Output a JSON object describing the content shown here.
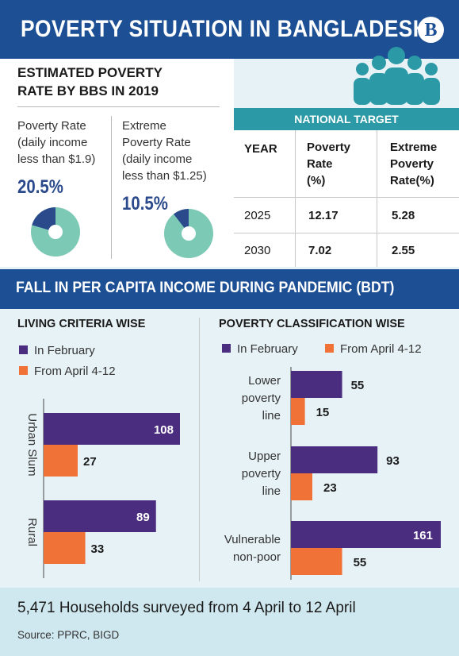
{
  "header": {
    "title": "POVERTY SITUATION IN BANGLADESH",
    "logo_letter": "B"
  },
  "estimate": {
    "heading_line1": "ESTIMATED POVERTY",
    "heading_line2": "RATE BY BBS IN 2019",
    "poverty": {
      "label_lines": [
        "Poverty Rate",
        "(daily income",
        "less than $1.9)"
      ],
      "value": "20.5%",
      "fraction": 0.205
    },
    "extreme": {
      "label_lines": [
        "Extreme",
        "Poverty Rate",
        "(daily income",
        "less than $1.25)"
      ],
      "value": "10.5%",
      "fraction": 0.105
    }
  },
  "colors": {
    "navy": "#1c4f93",
    "teal": "#2b99a6",
    "donut_light": "#7cc9b5",
    "donut_dark": "#2a4a8c",
    "bar_purple": "#4b2d7f",
    "bar_orange": "#f07236"
  },
  "national_target": {
    "title": "NATIONAL TARGET",
    "headers": {
      "year": "YEAR",
      "poverty": [
        "Poverty",
        "Rate",
        "(%)"
      ],
      "extreme": [
        "Extreme",
        "Poverty",
        "Rate(%)"
      ]
    },
    "rows": [
      {
        "year": "2025",
        "poverty": "12.17",
        "extreme": "5.28"
      },
      {
        "year": "2030",
        "poverty": "7.02",
        "extreme": "2.55"
      }
    ]
  },
  "band": {
    "title": "FALL IN PER CAPITA INCOME DURING PANDEMIC (BDT)"
  },
  "chart_data": [
    {
      "type": "bar",
      "orientation": "horizontal",
      "title": "LIVING CRITERIA WISE",
      "categories": [
        "Urban Slum",
        "Rural"
      ],
      "series": [
        {
          "name": "In February",
          "values": [
            108,
            89
          ]
        },
        {
          "name": "From April 4-12",
          "values": [
            27,
            33
          ]
        }
      ]
    },
    {
      "type": "bar",
      "orientation": "horizontal",
      "title": "POVERTY CLASSIFICATION WISE",
      "categories": [
        [
          "Lower",
          "poverty",
          "line"
        ],
        [
          "Upper",
          "poverty",
          "line"
        ],
        [
          "Vulnerable",
          "non-poor"
        ]
      ],
      "series": [
        {
          "name": "In February",
          "values": [
            55,
            93,
            161
          ]
        },
        {
          "name": "From April 4-12",
          "values": [
            15,
            23,
            55
          ]
        }
      ]
    }
  ],
  "footer": {
    "text": "5,471 Households surveyed from 4 April to 12 April",
    "source": "Source: PPRC, BIGD"
  }
}
